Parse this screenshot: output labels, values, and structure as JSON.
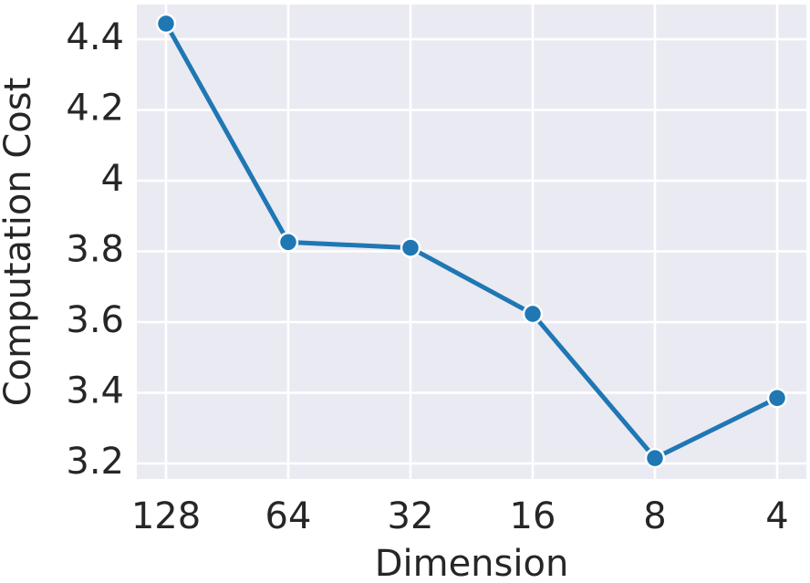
{
  "chart_data": {
    "type": "line",
    "x_label": "Dimension",
    "y_label": "Computation Cost",
    "categories": [
      "128",
      "64",
      "32",
      "16",
      "8",
      "4"
    ],
    "series": [
      {
        "name": "Computation Cost",
        "color": "#1f77b4",
        "values": [
          4.444,
          3.826,
          3.81,
          3.623,
          3.215,
          3.385
        ]
      }
    ],
    "ylim": [
      3.156,
      4.498
    ],
    "yticks": [
      3.2,
      3.4,
      3.6,
      3.8,
      4.0,
      4.2,
      4.4
    ],
    "grid": true
  }
}
